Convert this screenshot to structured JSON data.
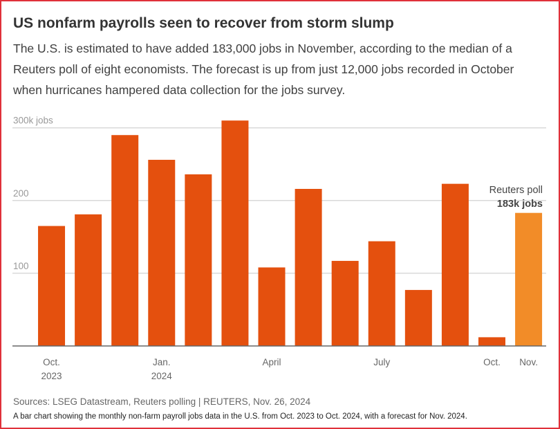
{
  "title": "US nonfarm payrolls seen to recover from storm slump",
  "subtitle": "The U.S. is estimated to have added 183,000 jobs in November, according to the median of a Reuters poll of eight economists. The forecast is up from just 12,000 jobs recorded in October when hurricanes hampered data collection for the jobs survey.",
  "chart_data": {
    "type": "bar",
    "categories": [
      "Oct. 2023",
      null,
      null,
      "Jan. 2024",
      null,
      null,
      "April",
      null,
      null,
      "July",
      null,
      null,
      "Oct.",
      "Nov."
    ],
    "values": [
      165,
      181,
      290,
      256,
      236,
      310,
      108,
      216,
      117,
      144,
      77,
      223,
      12,
      183
    ],
    "colors": [
      "#e4500e",
      "#e4500e",
      "#e4500e",
      "#e4500e",
      "#e4500e",
      "#e4500e",
      "#e4500e",
      "#e4500e",
      "#e4500e",
      "#e4500e",
      "#e4500e",
      "#e4500e",
      "#e4500e",
      "#f28c28"
    ],
    "ylim": [
      0,
      314
    ],
    "yticks": [
      100,
      200,
      {
        "value": 300,
        "label": "300k jobs"
      }
    ],
    "grid": true,
    "annotation": {
      "line1": "Reuters poll",
      "line2": "183k jobs"
    }
  },
  "source": "Sources: LSEG Datastream, Reuters polling | REUTERS, Nov. 26, 2024",
  "description": "A bar chart showing the monthly non-farm payroll jobs data in the U.S. from Oct. 2023 to Oct. 2024, with a forecast for Nov. 2024."
}
